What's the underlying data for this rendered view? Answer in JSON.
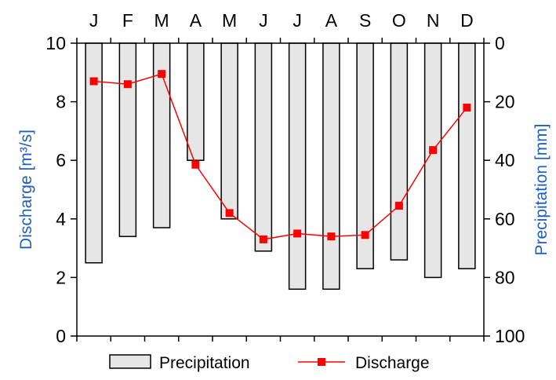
{
  "chart_data": {
    "type": "bar+line",
    "categories": [
      "J",
      "F",
      "M",
      "A",
      "M",
      "J",
      "J",
      "A",
      "S",
      "O",
      "N",
      "D"
    ],
    "series": [
      {
        "name": "Precipitation",
        "type": "bar",
        "axis": "right",
        "values": [
          75,
          66,
          63,
          40,
          60,
          71,
          84,
          84,
          77,
          74,
          80,
          77
        ],
        "color": "#e6e6e6",
        "stroke": "#000000"
      },
      {
        "name": "Discharge",
        "type": "line",
        "axis": "left",
        "values": [
          8.7,
          8.6,
          8.95,
          5.85,
          4.2,
          3.3,
          3.5,
          3.4,
          3.45,
          4.45,
          6.35,
          7.8
        ],
        "color": "#ff0000"
      }
    ],
    "ylabel_left": "Discharge [m³/s]",
    "ylabel_right": "Precipitation [mm]",
    "ylim_left": [
      0,
      10
    ],
    "ylim_right": [
      100,
      0
    ],
    "yticks_left": [
      "0",
      "2",
      "4",
      "6",
      "8",
      "10"
    ],
    "yticks_right": [
      "100",
      "80",
      "60",
      "40",
      "20",
      "0"
    ],
    "left_axis_label_color": "#1f5fbf",
    "right_axis_label_color": "#1f5fbf",
    "legend_position": "bottom",
    "grid": false
  }
}
